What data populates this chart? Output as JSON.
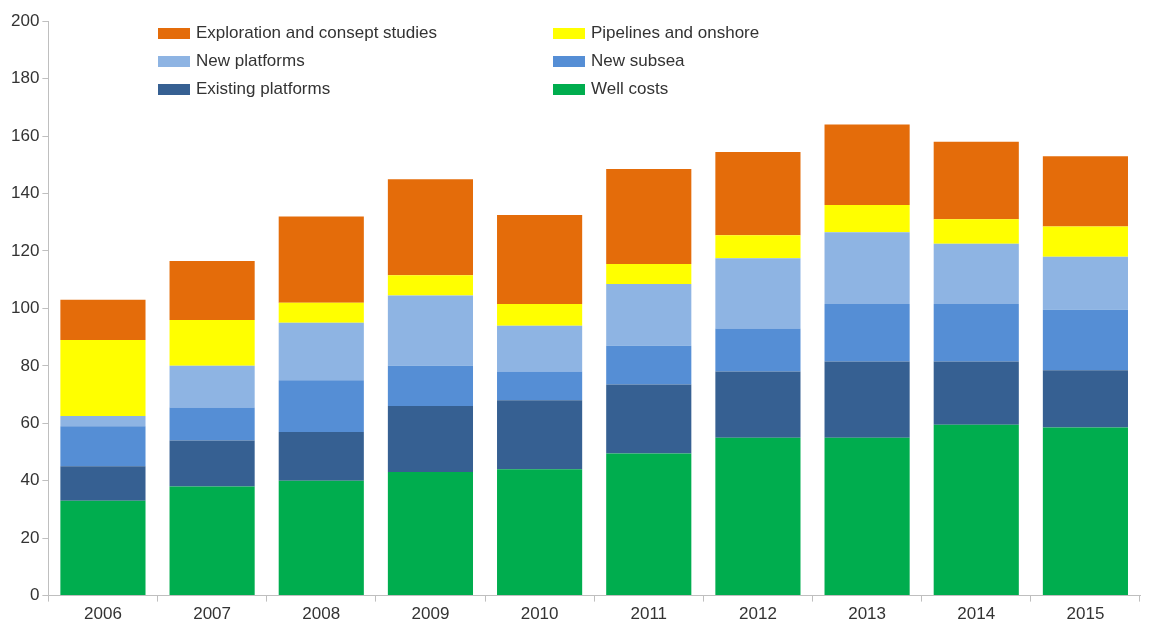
{
  "chart_data": {
    "type": "bar",
    "stacked": true,
    "categories": [
      "2006",
      "2007",
      "2008",
      "2009",
      "2010",
      "2011",
      "2012",
      "2013",
      "2014",
      "2015"
    ],
    "series": [
      {
        "name": "Well costs",
        "color": "#00ad4e",
        "values": [
          33,
          38,
          40,
          43,
          44,
          49.5,
          55,
          55,
          59.5,
          58.5
        ]
      },
      {
        "name": "Existing platforms",
        "color": "#366092",
        "values": [
          12,
          16,
          17,
          23,
          24,
          24,
          23,
          26.5,
          22,
          20
        ]
      },
      {
        "name": "New subsea",
        "color": "#558ed5",
        "values": [
          14,
          11.5,
          18,
          14,
          10,
          13.5,
          15,
          20,
          20,
          21
        ]
      },
      {
        "name": "New platforms",
        "color": "#8eb4e3",
        "values": [
          3.5,
          14.5,
          20,
          24.5,
          16,
          21.5,
          24.5,
          25,
          21,
          18.5
        ]
      },
      {
        "name": "Pipelines and onshore",
        "color": "#ffff00",
        "values": [
          26.5,
          16,
          7,
          7,
          7.5,
          7,
          8,
          9.5,
          8.5,
          10.5
        ]
      },
      {
        "name": "Exploration and consept studies",
        "color": "#e46c0a",
        "values": [
          14,
          20.5,
          30,
          33.5,
          31,
          33,
          29,
          28,
          27,
          24.5
        ]
      }
    ],
    "ylim": [
      0,
      200
    ],
    "yticks": [
      0,
      20,
      40,
      60,
      80,
      100,
      120,
      140,
      160,
      180,
      200
    ],
    "grid": false,
    "legend": "top left"
  }
}
